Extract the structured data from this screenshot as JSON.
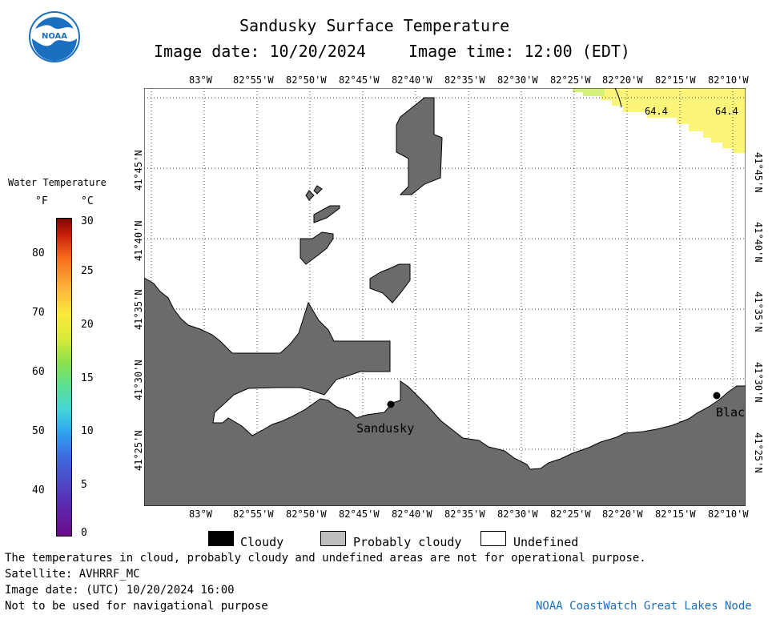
{
  "header": {
    "title": "Sandusky Surface Temperature",
    "image_date_label": "Image date: 10/20/2024",
    "image_time_label": "Image time: 12:00 (EDT)"
  },
  "logo": {
    "text": "NOAA",
    "color": "#1a6fc0"
  },
  "colorbar": {
    "title": "Water Temperature",
    "f_unit": "°F",
    "c_unit": "°C",
    "f_ticks": [
      "80",
      "70",
      "60",
      "50",
      "40"
    ],
    "c_ticks": [
      "30",
      "25",
      "20",
      "15",
      "10",
      "5",
      "0"
    ]
  },
  "map": {
    "lon_labels": [
      "83°W",
      "82°55'W",
      "82°50'W",
      "82°45'W",
      "82°40'W",
      "82°35'W",
      "82°30'W",
      "82°25'W",
      "82°20'W",
      "82°15'W",
      "82°10'W"
    ],
    "lat_labels": [
      "41°45'N",
      "41°40'N",
      "41°35'N",
      "41°30'N",
      "41°25'N"
    ],
    "land_color": "#6b6b6b",
    "warm_water_color": "#fbf57a",
    "cities": [
      {
        "name": "Sandusky"
      },
      {
        "name": "Blac"
      }
    ],
    "temperature_labels": [
      "64.4",
      "64.4"
    ]
  },
  "legend": {
    "cloudy": "Cloudy",
    "probably_cloudy": "Probably cloudy",
    "undefined": "Undefined"
  },
  "footer": {
    "disclaimer": "The temperatures in cloud, probably cloudy and undefined areas are not for operational purpose.",
    "satellite": "Satellite: AVHRRF_MC",
    "utc_date": "Image date: (UTC) 10/20/2024  16:00",
    "nav_warning": "Not to be used for navigational purpose",
    "credit": "NOAA CoastWatch Great Lakes Node"
  }
}
